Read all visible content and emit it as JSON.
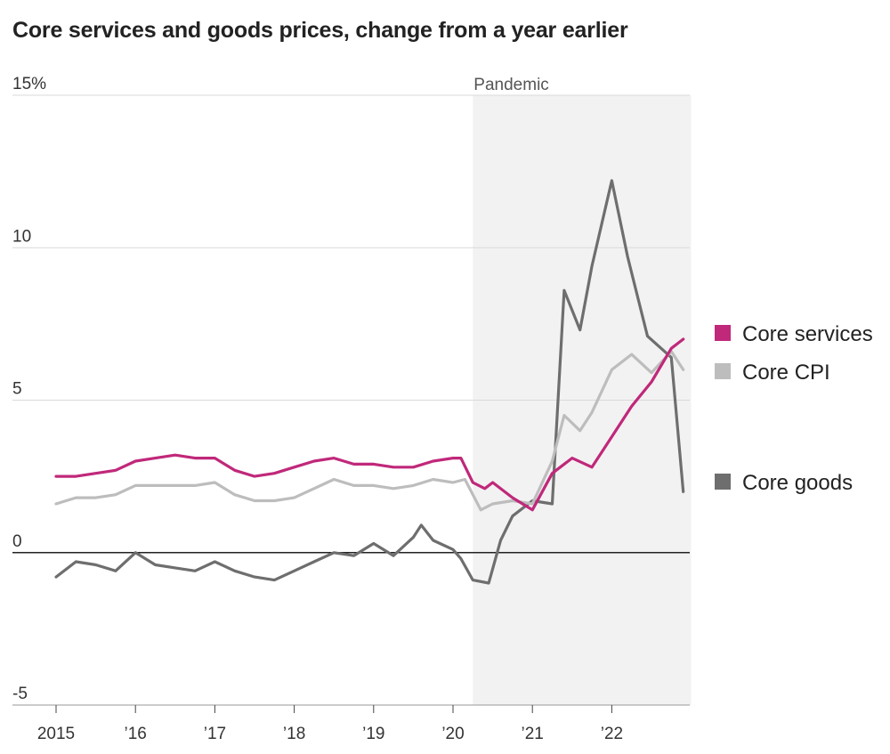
{
  "chart_data": {
    "type": "line",
    "title": "Core services and goods prices, change from a year earlier",
    "xlabel": "",
    "ylabel": "",
    "ylim": [
      -5,
      15
    ],
    "xlim": [
      2015,
      2023
    ],
    "grid": true,
    "y_ticks": [
      {
        "value": 15,
        "label": "15%"
      },
      {
        "value": 10,
        "label": "10"
      },
      {
        "value": 5,
        "label": "5"
      },
      {
        "value": 0,
        "label": "0"
      },
      {
        "value": -5,
        "label": "-5"
      }
    ],
    "x_ticks": [
      {
        "value": 2015,
        "label": "2015"
      },
      {
        "value": 2016,
        "label": "’16"
      },
      {
        "value": 2017,
        "label": "’17"
      },
      {
        "value": 2018,
        "label": "’18"
      },
      {
        "value": 2019,
        "label": "’19"
      },
      {
        "value": 2020,
        "label": "’20"
      },
      {
        "value": 2021,
        "label": "’21"
      },
      {
        "value": 2022,
        "label": "’22"
      }
    ],
    "shaded_region": {
      "label": "Pandemic",
      "start": 2020.25,
      "end": 2023.0,
      "color": "#f2f2f2"
    },
    "legend_position": "right",
    "series": [
      {
        "name": "Core services",
        "color": "#c0287a",
        "points": [
          [
            2015.0,
            2.5
          ],
          [
            2015.25,
            2.5
          ],
          [
            2015.5,
            2.6
          ],
          [
            2015.75,
            2.7
          ],
          [
            2016.0,
            3.0
          ],
          [
            2016.25,
            3.1
          ],
          [
            2016.5,
            3.2
          ],
          [
            2016.75,
            3.1
          ],
          [
            2017.0,
            3.1
          ],
          [
            2017.25,
            2.7
          ],
          [
            2017.5,
            2.5
          ],
          [
            2017.75,
            2.6
          ],
          [
            2018.0,
            2.8
          ],
          [
            2018.25,
            3.0
          ],
          [
            2018.5,
            3.1
          ],
          [
            2018.75,
            2.9
          ],
          [
            2019.0,
            2.9
          ],
          [
            2019.25,
            2.8
          ],
          [
            2019.5,
            2.8
          ],
          [
            2019.75,
            3.0
          ],
          [
            2020.0,
            3.1
          ],
          [
            2020.1,
            3.1
          ],
          [
            2020.25,
            2.3
          ],
          [
            2020.4,
            2.1
          ],
          [
            2020.5,
            2.3
          ],
          [
            2020.75,
            1.8
          ],
          [
            2021.0,
            1.4
          ],
          [
            2021.25,
            2.6
          ],
          [
            2021.5,
            3.1
          ],
          [
            2021.75,
            2.8
          ],
          [
            2022.0,
            3.8
          ],
          [
            2022.25,
            4.8
          ],
          [
            2022.5,
            5.6
          ],
          [
            2022.75,
            6.7
          ],
          [
            2022.9,
            7.0
          ]
        ]
      },
      {
        "name": "Core CPI",
        "color": "#bdbdbd",
        "points": [
          [
            2015.0,
            1.6
          ],
          [
            2015.25,
            1.8
          ],
          [
            2015.5,
            1.8
          ],
          [
            2015.75,
            1.9
          ],
          [
            2016.0,
            2.2
          ],
          [
            2016.25,
            2.2
          ],
          [
            2016.5,
            2.2
          ],
          [
            2016.75,
            2.2
          ],
          [
            2017.0,
            2.3
          ],
          [
            2017.25,
            1.9
          ],
          [
            2017.5,
            1.7
          ],
          [
            2017.75,
            1.7
          ],
          [
            2018.0,
            1.8
          ],
          [
            2018.25,
            2.1
          ],
          [
            2018.5,
            2.4
          ],
          [
            2018.75,
            2.2
          ],
          [
            2019.0,
            2.2
          ],
          [
            2019.25,
            2.1
          ],
          [
            2019.5,
            2.2
          ],
          [
            2019.75,
            2.4
          ],
          [
            2020.0,
            2.3
          ],
          [
            2020.15,
            2.4
          ],
          [
            2020.35,
            1.4
          ],
          [
            2020.5,
            1.6
          ],
          [
            2020.75,
            1.7
          ],
          [
            2021.0,
            1.6
          ],
          [
            2021.25,
            3.0
          ],
          [
            2021.4,
            4.5
          ],
          [
            2021.6,
            4.0
          ],
          [
            2021.75,
            4.6
          ],
          [
            2022.0,
            6.0
          ],
          [
            2022.25,
            6.5
          ],
          [
            2022.5,
            5.9
          ],
          [
            2022.75,
            6.6
          ],
          [
            2022.9,
            6.0
          ]
        ]
      },
      {
        "name": "Core goods",
        "color": "#6e6e6e",
        "points": [
          [
            2015.0,
            -0.8
          ],
          [
            2015.25,
            -0.3
          ],
          [
            2015.5,
            -0.4
          ],
          [
            2015.75,
            -0.6
          ],
          [
            2016.0,
            0.0
          ],
          [
            2016.25,
            -0.4
          ],
          [
            2016.5,
            -0.5
          ],
          [
            2016.75,
            -0.6
          ],
          [
            2017.0,
            -0.3
          ],
          [
            2017.25,
            -0.6
          ],
          [
            2017.5,
            -0.8
          ],
          [
            2017.75,
            -0.9
          ],
          [
            2018.0,
            -0.6
          ],
          [
            2018.25,
            -0.3
          ],
          [
            2018.5,
            0.0
          ],
          [
            2018.75,
            -0.1
          ],
          [
            2019.0,
            0.3
          ],
          [
            2019.25,
            -0.1
          ],
          [
            2019.5,
            0.5
          ],
          [
            2019.6,
            0.9
          ],
          [
            2019.75,
            0.4
          ],
          [
            2020.0,
            0.1
          ],
          [
            2020.1,
            -0.2
          ],
          [
            2020.25,
            -0.9
          ],
          [
            2020.45,
            -1.0
          ],
          [
            2020.6,
            0.4
          ],
          [
            2020.75,
            1.2
          ],
          [
            2021.0,
            1.7
          ],
          [
            2021.25,
            1.6
          ],
          [
            2021.4,
            8.6
          ],
          [
            2021.6,
            7.3
          ],
          [
            2021.75,
            9.4
          ],
          [
            2022.0,
            12.2
          ],
          [
            2022.2,
            9.7
          ],
          [
            2022.45,
            7.1
          ],
          [
            2022.75,
            6.4
          ],
          [
            2022.9,
            2.0
          ]
        ]
      }
    ]
  }
}
